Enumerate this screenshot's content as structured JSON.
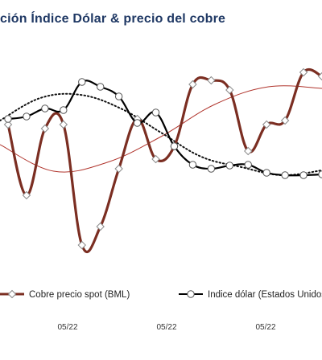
{
  "chart_data": {
    "type": "line",
    "title": "ción Índice Dólar & precio del cobre",
    "x_tick_labels": [
      "05/22",
      "05/22",
      "05/22"
    ],
    "y_axis_visible": false,
    "grid": false,
    "legend_position": "bottom",
    "series": [
      {
        "name": "Cobre precio spot (BML)",
        "color": "#7b2e22",
        "marker": "diamond",
        "values": [
          155,
          243,
          160,
          155,
          305,
          282,
          210,
          148,
          198,
          182,
          105,
          100,
          112,
          188,
          155,
          150,
          90,
          95
        ]
      },
      {
        "name": "Indice dólar (Estados Unidos)",
        "color": "#000000",
        "marker": "circle",
        "values": [
          148,
          145,
          135,
          137,
          102,
          108,
          120,
          153,
          140,
          182,
          205,
          210,
          206,
          205,
          215,
          218,
          218,
          217
        ]
      },
      {
        "name": "",
        "color": "#111111",
        "style": "dotted-trend",
        "values": [
          150,
          122,
          118,
          135,
          165,
          195,
          208,
          218,
          212
        ]
      },
      {
        "name": "",
        "color": "#b0342c",
        "style": "thin-trend",
        "values": [
          180,
          213,
          202,
          170,
          130,
          108,
          110
        ]
      }
    ]
  }
}
